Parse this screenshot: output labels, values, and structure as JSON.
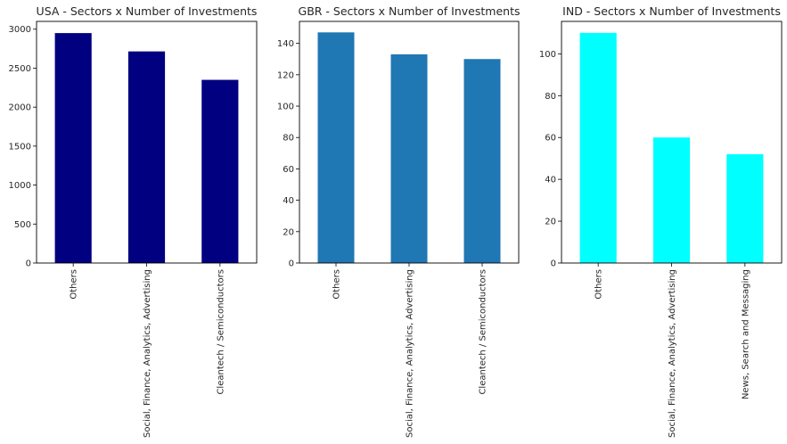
{
  "chart_data": [
    {
      "type": "bar",
      "title": "USA - Sectors x Number of Investments",
      "categories": [
        "Others",
        "Social, Finance, Analytics, Advertising",
        "Cleantech / Semiconductors"
      ],
      "values": [
        2950,
        2715,
        2350
      ],
      "ylim": [
        0,
        3100
      ],
      "yticks": [
        "0",
        "500",
        "1000",
        "1500",
        "2000",
        "2500",
        "3000"
      ],
      "color": "#000080",
      "xlabel": "",
      "ylabel": "",
      "grid": false
    },
    {
      "type": "bar",
      "title": "GBR - Sectors x Number of Investments",
      "categories": [
        "Others",
        "Social, Finance, Analytics, Advertising",
        "Cleantech / Semiconductors"
      ],
      "values": [
        147,
        133,
        130
      ],
      "ylim": [
        0,
        154
      ],
      "yticks": [
        "0",
        "20",
        "40",
        "60",
        "80",
        "100",
        "120",
        "140"
      ],
      "color": "#1f77b4",
      "xlabel": "",
      "ylabel": "",
      "grid": false
    },
    {
      "type": "bar",
      "title": "IND - Sectors x Number of Investments",
      "categories": [
        "Others",
        "Social, Finance, Analytics, Advertising",
        "News, Search and Messaging"
      ],
      "values": [
        110,
        60,
        52
      ],
      "ylim": [
        0,
        115.5
      ],
      "yticks": [
        "0",
        "20",
        "40",
        "60",
        "80",
        "100"
      ],
      "color": "#00ffff",
      "xlabel": "",
      "ylabel": "",
      "grid": false
    }
  ]
}
